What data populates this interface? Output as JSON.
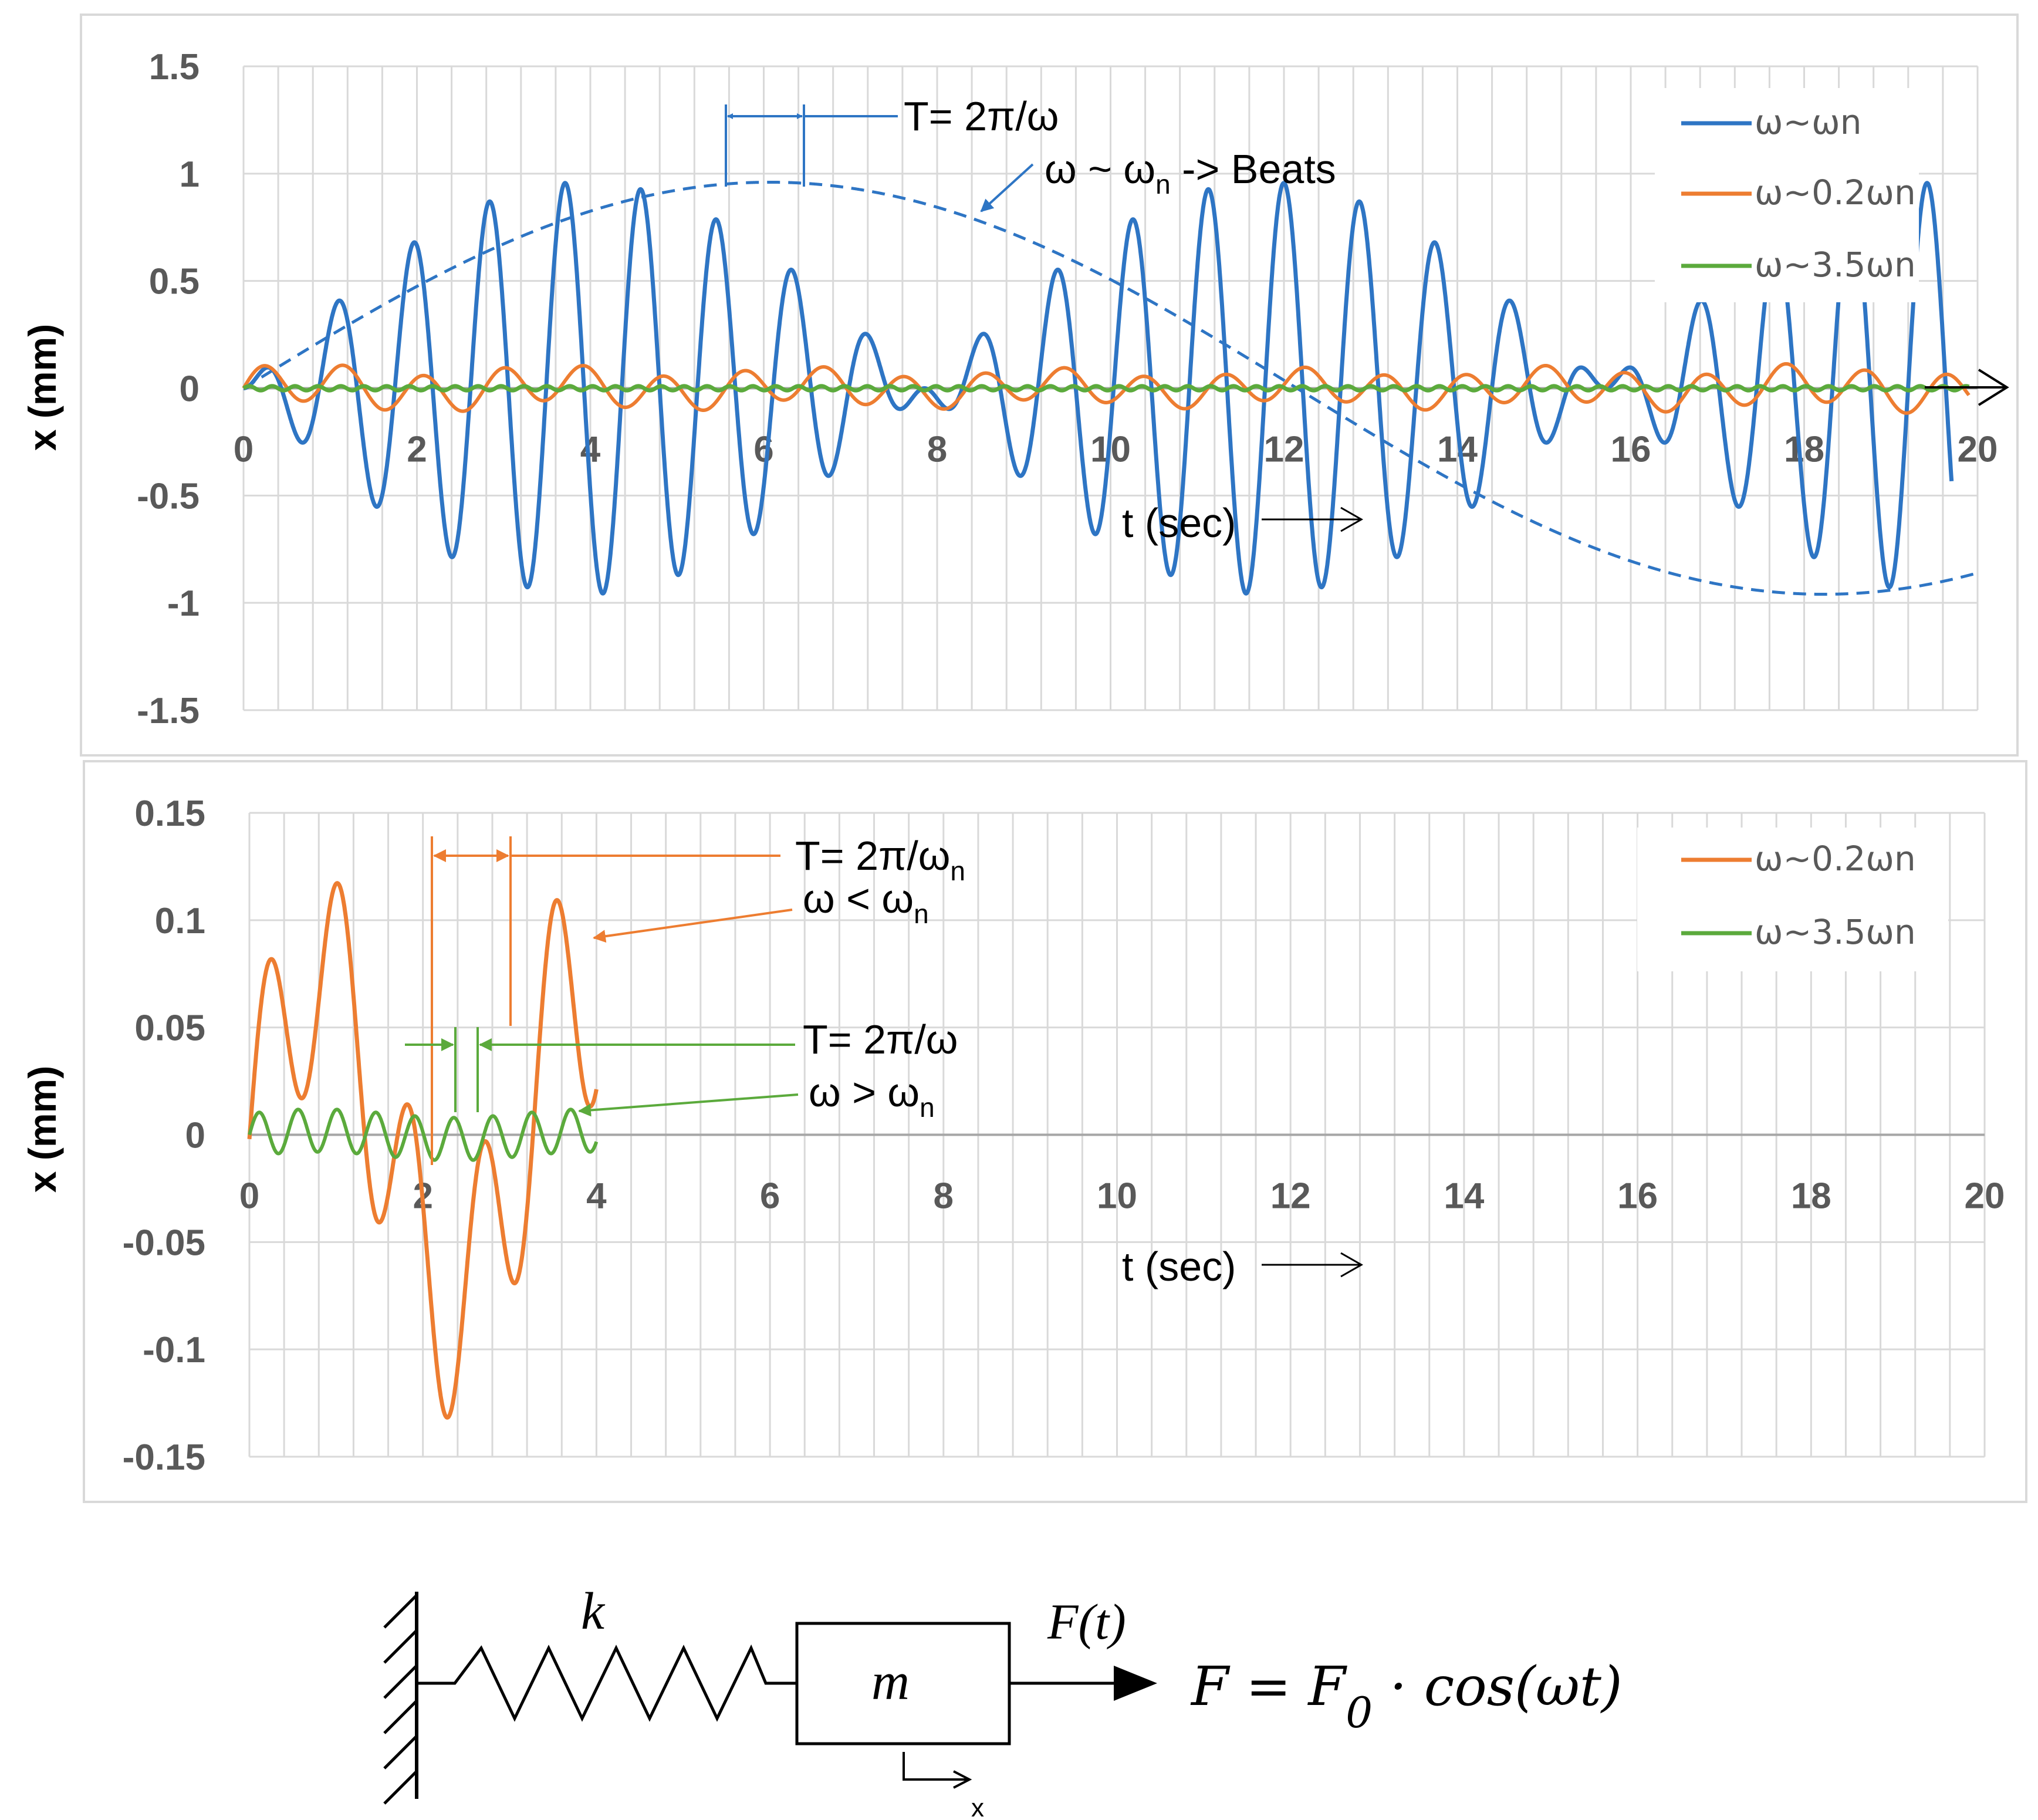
{
  "chart_data": [
    {
      "type": "line",
      "ylabel": "x (mm)",
      "xlabel": "t (sec)",
      "xlim": [
        0,
        20
      ],
      "ylim": [
        -1.5,
        1.5
      ],
      "x_ticks": [
        "0",
        "2",
        "4",
        "6",
        "8",
        "10",
        "12",
        "14",
        "16",
        "18",
        "20"
      ],
      "y_ticks": [
        "1.5",
        "1",
        "0.5",
        "0",
        "-0.5",
        "-1",
        "-1.5"
      ],
      "series": [
        {
          "name": "ω~ωn",
          "color": "#2E75C4",
          "t_end": 19.7,
          "wn": 6.8,
          "w": 7.6,
          "amp": 0.96
        },
        {
          "name": "ω~0.2ωn",
          "color": "#ED7D31",
          "t_end": 19.9,
          "amp": 0.12
        },
        {
          "name": "ω~3.5ωn",
          "color": "#5BAA3C",
          "t_end": 19.9,
          "amp": 0.01
        }
      ],
      "envelope": {
        "amp": 0.96,
        "period": 24.3
      },
      "annotations": {
        "period": "T= 2π/ω",
        "beats_prefix": "ω ~ ω",
        "beats_sub": "n",
        "beats_suffix": " -> Beats"
      }
    },
    {
      "type": "line",
      "ylabel": "x (mm)",
      "xlabel": "t (sec)",
      "xlim": [
        0,
        20
      ],
      "ylim": [
        -0.15,
        0.15
      ],
      "x_ticks": [
        "0",
        "2",
        "4",
        "6",
        "8",
        "10",
        "12",
        "14",
        "16",
        "18",
        "20"
      ],
      "y_ticks": [
        "0.15",
        "0.1",
        "0.05",
        "0",
        "-0.05",
        "-0.1",
        "-0.15"
      ],
      "series": [
        {
          "name": "ω~0.2ωn",
          "color": "#ED7D31",
          "t_end": 4.0,
          "amp": 0.12
        },
        {
          "name": "ω~3.5ωn",
          "color": "#5BAA3C",
          "t_end": 4.0,
          "amp": 0.01
        }
      ],
      "annotations": {
        "orange_period_prefix": "T= 2π/ω",
        "orange_period_sub": "n",
        "orange_cond_prefix": "ω < ω",
        "orange_cond_sub": "n",
        "green_period": "T= 2π/ω",
        "green_cond_prefix": "ω > ω",
        "green_cond_sub": "n"
      }
    }
  ],
  "diagram": {
    "spring_label": "k",
    "mass_label": "m",
    "force_label": "F(t)",
    "formula_prefix": "F = F",
    "formula_sub": "0",
    "formula_suffix": " · cos(ωt)",
    "disp_label": "x"
  }
}
